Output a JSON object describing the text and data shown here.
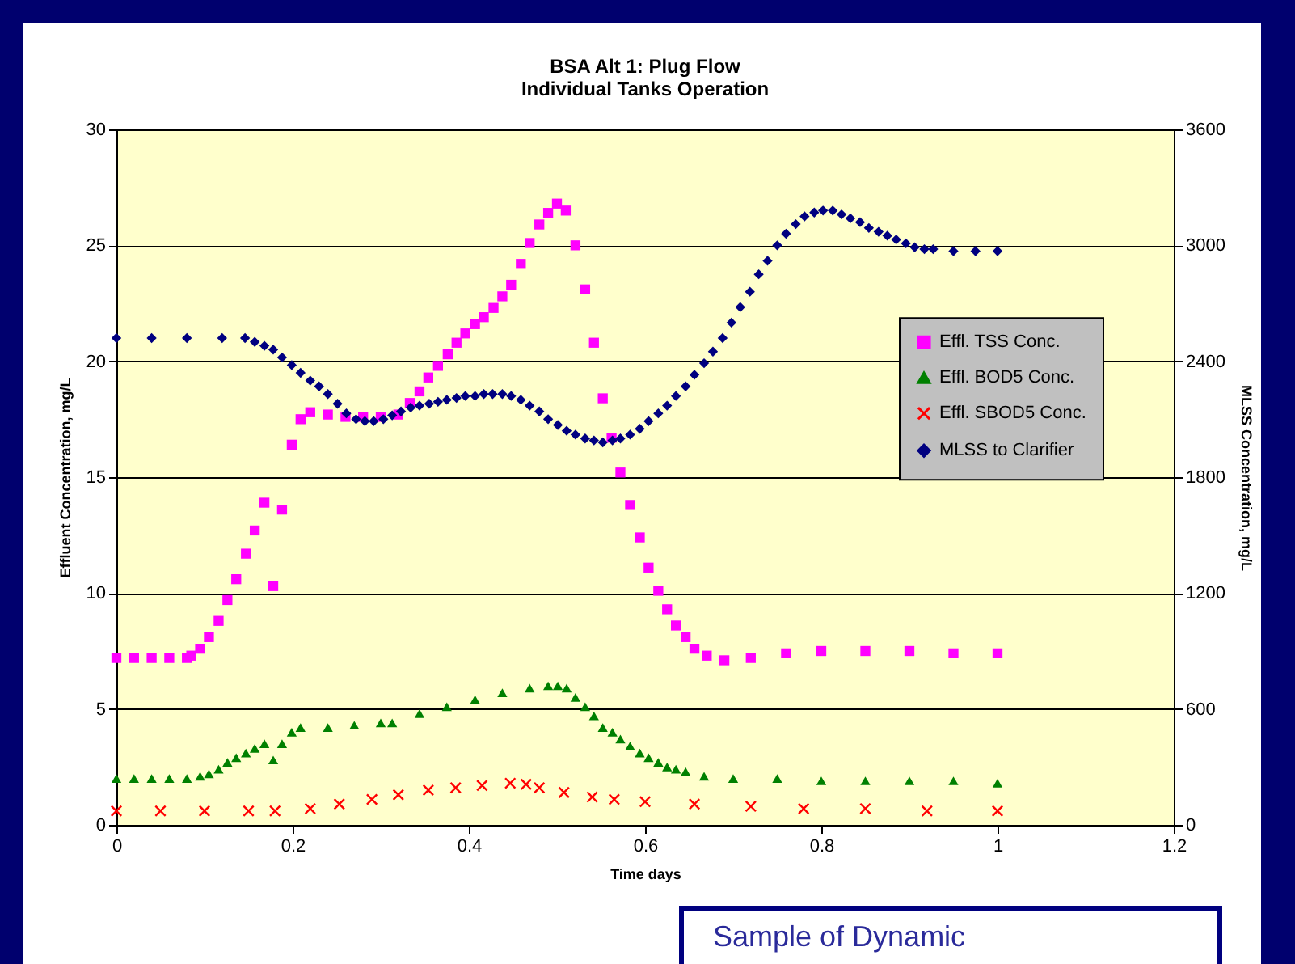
{
  "chart_data": {
    "type": "scatter",
    "title": "BSA Alt 1: Plug Flow",
    "subtitle": "Individual Tanks Operation",
    "xlabel": "Time days",
    "ylabel": "Effluent Concentration, mg/L",
    "y2label": "MLSS Concentration, mg/L",
    "xlim": [
      0,
      1.2
    ],
    "xticks": [
      0,
      0.2,
      0.4,
      0.6,
      0.8,
      1,
      1.2
    ],
    "ylim": [
      0,
      30
    ],
    "yticks": [
      0,
      5,
      10,
      15,
      20,
      25,
      30
    ],
    "y2lim": [
      0,
      3600
    ],
    "y2ticks": [
      0,
      600,
      1200,
      1800,
      2400,
      3000,
      3600
    ],
    "grid": "y",
    "legend": "right",
    "annotations": [
      "Sample of Dynamic"
    ],
    "series": [
      {
        "name": "Effl. TSS Conc.",
        "color": "#ff00ff",
        "marker": "square",
        "x": [
          0,
          0.02,
          0.04,
          0.06,
          0.08,
          0.085,
          0.095,
          0.105,
          0.116,
          0.126,
          0.136,
          0.147,
          0.157,
          0.168,
          0.178,
          0.188,
          0.199,
          0.209,
          0.22,
          0.24,
          0.26,
          0.28,
          0.3,
          0.32,
          0.333,
          0.344,
          0.354,
          0.365,
          0.376,
          0.386,
          0.396,
          0.407,
          0.417,
          0.428,
          0.438,
          0.448,
          0.459,
          0.469,
          0.48,
          0.49,
          0.5,
          0.51,
          0.521,
          0.532,
          0.542,
          0.552,
          0.562,
          0.572,
          0.583,
          0.594,
          0.604,
          0.615,
          0.625,
          0.635,
          0.646,
          0.656,
          0.67,
          0.69,
          0.72,
          0.76,
          0.8,
          0.85,
          0.9,
          0.95,
          1.0
        ],
        "values": [
          7.2,
          7.2,
          7.2,
          7.2,
          7.2,
          7.3,
          7.6,
          8.1,
          8.8,
          9.7,
          10.6,
          11.7,
          12.7,
          13.9,
          10.3,
          13.6,
          16.4,
          17.5,
          17.8,
          17.7,
          17.6,
          17.6,
          17.6,
          17.7,
          18.2,
          18.7,
          19.3,
          19.8,
          20.3,
          20.8,
          21.2,
          21.6,
          21.9,
          22.3,
          22.8,
          23.3,
          24.2,
          25.1,
          25.9,
          26.4,
          26.8,
          26.5,
          25.0,
          23.1,
          20.8,
          18.4,
          16.7,
          15.2,
          13.8,
          12.4,
          11.1,
          10.1,
          9.3,
          8.6,
          8.1,
          7.6,
          7.3,
          7.1,
          7.2,
          7.4,
          7.5,
          7.5,
          7.5,
          7.4,
          7.4
        ]
      },
      {
        "name": "Effl. BOD5 Conc.",
        "color": "#008000",
        "marker": "triangle",
        "x": [
          0,
          0.02,
          0.04,
          0.06,
          0.08,
          0.095,
          0.105,
          0.116,
          0.126,
          0.136,
          0.147,
          0.157,
          0.168,
          0.178,
          0.188,
          0.199,
          0.209,
          0.24,
          0.27,
          0.3,
          0.313,
          0.344,
          0.375,
          0.407,
          0.438,
          0.469,
          0.49,
          0.501,
          0.511,
          0.521,
          0.532,
          0.542,
          0.552,
          0.563,
          0.572,
          0.583,
          0.594,
          0.604,
          0.615,
          0.625,
          0.635,
          0.646,
          0.667,
          0.7,
          0.75,
          0.8,
          0.85,
          0.9,
          0.95,
          1.0
        ],
        "values": [
          2.0,
          2.0,
          2.0,
          2.0,
          2.0,
          2.1,
          2.2,
          2.4,
          2.7,
          2.9,
          3.1,
          3.3,
          3.5,
          2.8,
          3.5,
          4.0,
          4.2,
          4.2,
          4.3,
          4.4,
          4.4,
          4.8,
          5.1,
          5.4,
          5.7,
          5.9,
          6.0,
          6.0,
          5.9,
          5.5,
          5.1,
          4.7,
          4.2,
          4.0,
          3.7,
          3.4,
          3.1,
          2.9,
          2.7,
          2.5,
          2.4,
          2.3,
          2.1,
          2.0,
          2.0,
          1.9,
          1.9,
          1.9,
          1.9,
          1.8
        ]
      },
      {
        "name": "Effl. SBOD5 Conc.",
        "color": "#ff0000",
        "marker": "cross",
        "x": [
          0,
          0.05,
          0.1,
          0.15,
          0.18,
          0.22,
          0.253,
          0.29,
          0.32,
          0.354,
          0.385,
          0.415,
          0.447,
          0.465,
          0.48,
          0.508,
          0.54,
          0.565,
          0.6,
          0.656,
          0.72,
          0.78,
          0.85,
          0.92,
          1.0
        ],
        "values": [
          0.6,
          0.6,
          0.6,
          0.6,
          0.6,
          0.7,
          0.9,
          1.1,
          1.3,
          1.5,
          1.6,
          1.7,
          1.8,
          1.75,
          1.6,
          1.4,
          1.2,
          1.1,
          1.0,
          0.9,
          0.8,
          0.7,
          0.7,
          0.6,
          0.6
        ]
      },
      {
        "name": "MLSS to Clarifier",
        "color": "#000080",
        "marker": "diamond",
        "axis": "y2",
        "x": [
          0,
          0.04,
          0.08,
          0.12,
          0.146,
          0.157,
          0.168,
          0.178,
          0.188,
          0.199,
          0.209,
          0.22,
          0.23,
          0.24,
          0.251,
          0.261,
          0.272,
          0.282,
          0.292,
          0.303,
          0.313,
          0.323,
          0.334,
          0.344,
          0.355,
          0.365,
          0.375,
          0.386,
          0.396,
          0.407,
          0.417,
          0.427,
          0.438,
          0.448,
          0.459,
          0.469,
          0.48,
          0.49,
          0.501,
          0.511,
          0.521,
          0.532,
          0.542,
          0.552,
          0.563,
          0.572,
          0.583,
          0.594,
          0.604,
          0.615,
          0.625,
          0.635,
          0.646,
          0.656,
          0.667,
          0.677,
          0.688,
          0.698,
          0.708,
          0.719,
          0.729,
          0.739,
          0.75,
          0.76,
          0.771,
          0.781,
          0.792,
          0.802,
          0.813,
          0.823,
          0.833,
          0.844,
          0.854,
          0.865,
          0.875,
          0.885,
          0.896,
          0.906,
          0.917,
          0.927,
          0.95,
          0.975,
          1.0
        ],
        "values": [
          2520,
          2520,
          2520,
          2520,
          2520,
          2500,
          2480,
          2460,
          2420,
          2380,
          2340,
          2300,
          2270,
          2230,
          2180,
          2130,
          2100,
          2090,
          2090,
          2100,
          2120,
          2140,
          2160,
          2170,
          2180,
          2190,
          2200,
          2210,
          2220,
          2220,
          2230,
          2230,
          2230,
          2220,
          2200,
          2170,
          2140,
          2100,
          2070,
          2040,
          2020,
          2000,
          1990,
          1980,
          1990,
          2000,
          2020,
          2050,
          2090,
          2130,
          2170,
          2220,
          2270,
          2330,
          2390,
          2450,
          2520,
          2600,
          2680,
          2760,
          2850,
          2920,
          3000,
          3060,
          3110,
          3150,
          3170,
          3180,
          3180,
          3160,
          3140,
          3120,
          3090,
          3070,
          3050,
          3030,
          3010,
          2990,
          2980,
          2980,
          2970,
          2970,
          2970
        ]
      }
    ]
  }
}
